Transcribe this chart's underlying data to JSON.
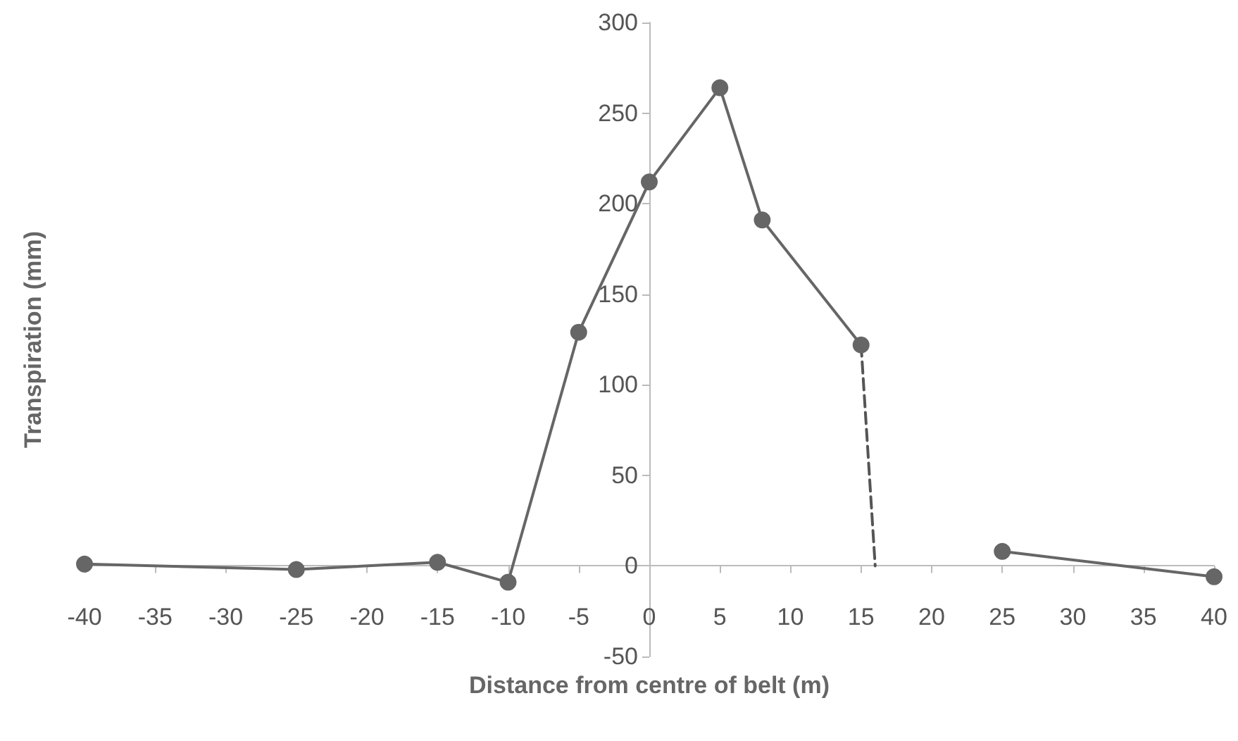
{
  "chart_data": {
    "type": "line",
    "xlabel": "Distance from centre of belt (m)",
    "ylabel": "Transpiration (mm)",
    "xlim": [
      -40,
      40
    ],
    "xticks": [
      -40,
      -35,
      -30,
      -25,
      -20,
      -15,
      -10,
      -5,
      0,
      5,
      10,
      15,
      20,
      25,
      30,
      35,
      40
    ],
    "ylim": [
      -50,
      300
    ],
    "yticks": [
      -50,
      0,
      50,
      100,
      150,
      200,
      250,
      300
    ],
    "series": [
      {
        "color": "#666666",
        "marker": "circle",
        "line_style": "solid",
        "x": [
          -40,
          -25,
          -15,
          -10,
          -5,
          0,
          5,
          8,
          15
        ],
        "values": [
          1,
          -2,
          2,
          -9,
          129,
          212,
          264,
          191,
          122
        ]
      },
      {
        "color": "#555555",
        "marker": "none",
        "line_style": "dashed",
        "x": [
          15,
          16
        ],
        "values": [
          122,
          0
        ]
      },
      {
        "color": "#666666",
        "marker": "circle",
        "line_style": "solid",
        "x": [
          25,
          40
        ],
        "values": [
          8,
          -6
        ]
      }
    ]
  }
}
